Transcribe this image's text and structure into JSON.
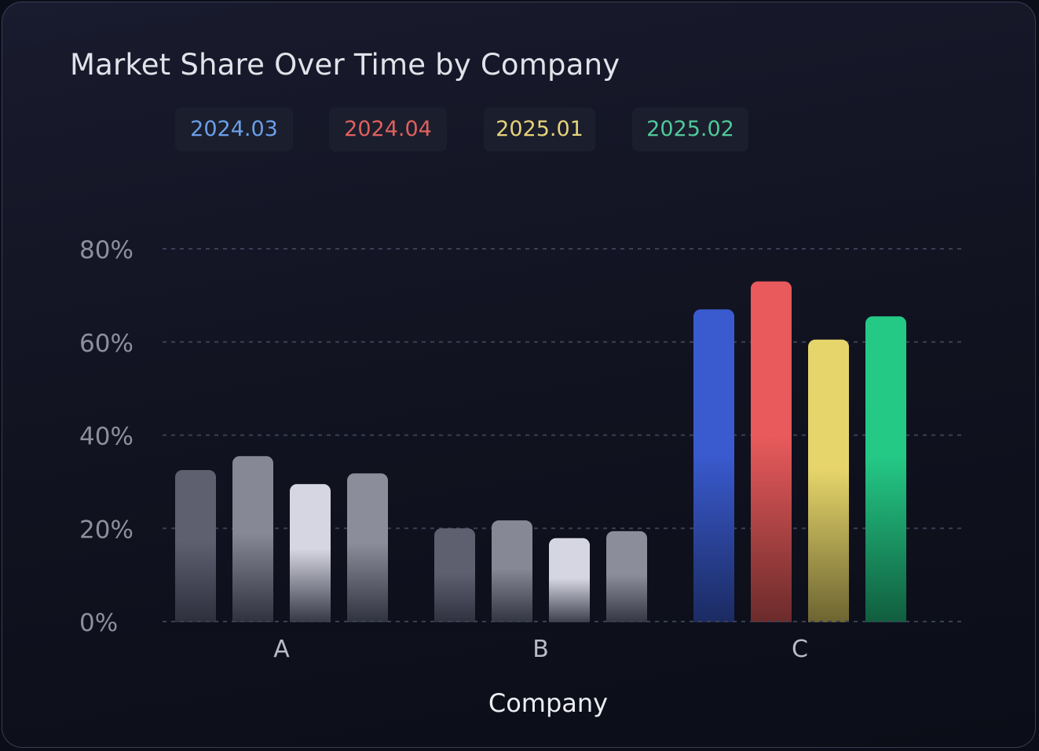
{
  "chart_data": {
    "type": "bar",
    "title": "Market Share Over Time by Company",
    "xlabel": "Company",
    "ylabel": "",
    "categories": [
      "A",
      "B",
      "C"
    ],
    "ylim": [
      0,
      80
    ],
    "yticks": [
      "0%",
      "20%",
      "40%",
      "60%",
      "80%"
    ],
    "grid": true,
    "legend_position": "top",
    "series": [
      {
        "name": "2024.03",
        "color": "#6b9fe8",
        "values": [
          32.5,
          20,
          67
        ]
      },
      {
        "name": "2024.04",
        "color": "#e0605e",
        "values": [
          35.5,
          21.7,
          73
        ]
      },
      {
        "name": "2025.01",
        "color": "#e5d27a",
        "values": [
          29.5,
          17.9,
          60.5
        ]
      },
      {
        "name": "2025.02",
        "color": "#4fc99a",
        "values": [
          31.8,
          19.4,
          65.5
        ]
      }
    ],
    "bar_styles": {
      "neutral_colors": [
        "#5e6070",
        "#868896",
        "#d6d6e2",
        "#8b8d9a"
      ],
      "highlight_colors": [
        "#3a5bd0",
        "#e85a5c",
        "#e6d56a",
        "#24c986"
      ],
      "highlight_category": "C"
    }
  }
}
